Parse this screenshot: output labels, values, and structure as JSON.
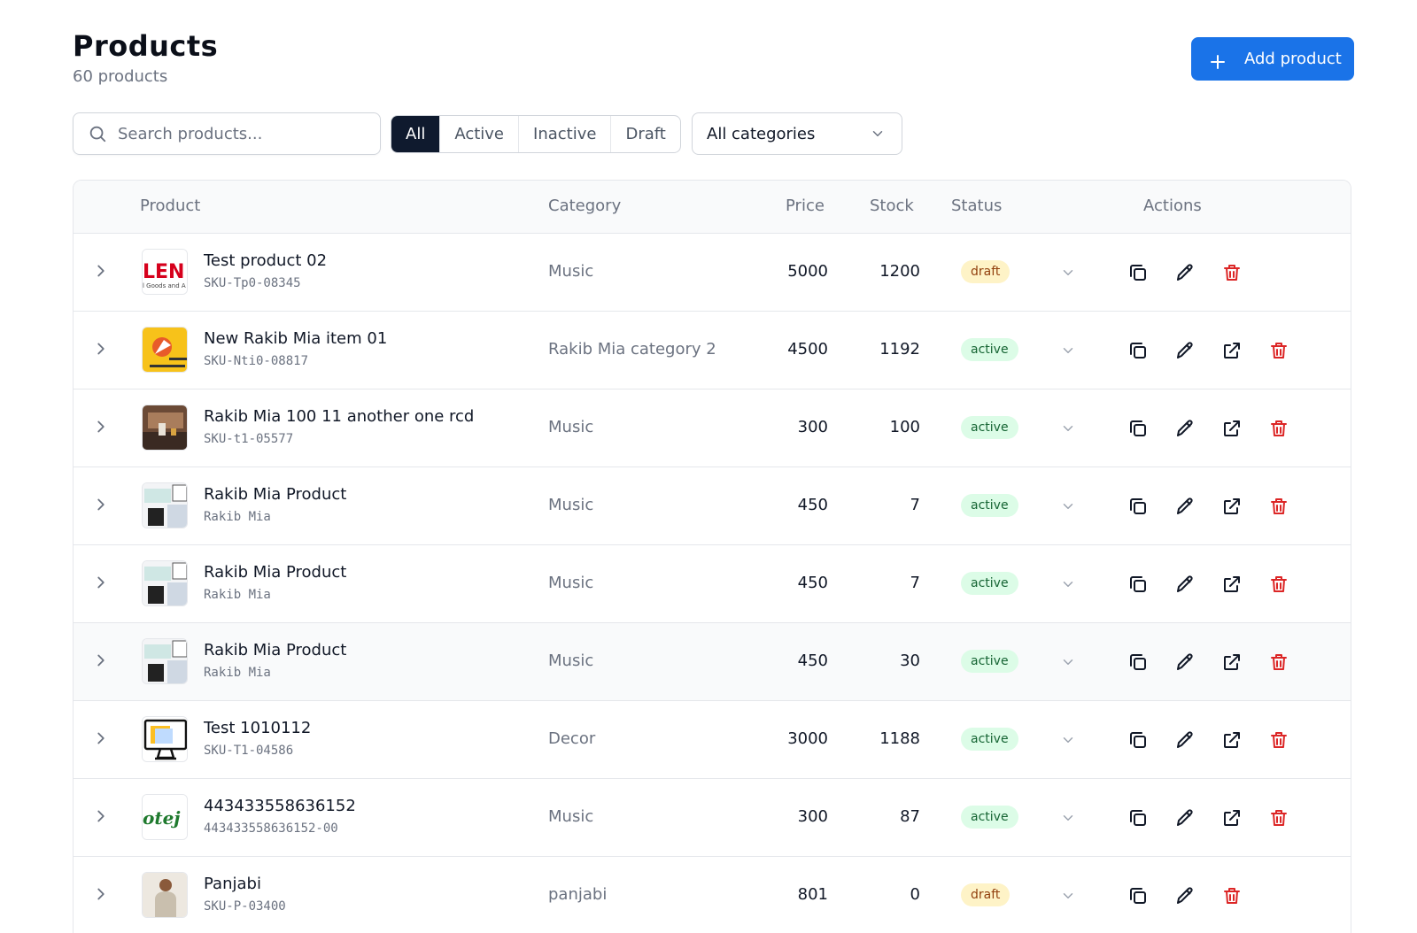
{
  "header": {
    "title": "Products",
    "count_text": "60 products"
  },
  "add_button": {
    "label": "Add product"
  },
  "search": {
    "placeholder": "Search products..."
  },
  "filters": {
    "tabs": [
      "All",
      "Active",
      "Inactive",
      "Draft"
    ],
    "selected": "All"
  },
  "category_select": {
    "value": "All categories"
  },
  "table": {
    "columns": {
      "product": "Product",
      "category": "Category",
      "price": "Price",
      "stock": "Stock",
      "status": "Status",
      "actions": "Actions"
    },
    "rows": [
      {
        "name": "Test product 02",
        "sku": "SKU-Tp0-08345",
        "category": "Music",
        "price": "5000",
        "stock": "1200",
        "status": "draft",
        "thumb": "logo-red",
        "has_external": false
      },
      {
        "name": "New Rakib Mia item 01",
        "sku": "SKU-Nti0-08817",
        "category": "Rakib Mia category 2",
        "price": "4500",
        "stock": "1192",
        "status": "active",
        "thumb": "rocket-yellow",
        "has_external": true
      },
      {
        "name": "Rakib Mia 100 11 another one rcd",
        "sku": "SKU-t1-05577",
        "category": "Music",
        "price": "300",
        "stock": "100",
        "status": "active",
        "thumb": "room-photo",
        "has_external": true
      },
      {
        "name": "Rakib Mia Product",
        "sku": "Rakib Mia",
        "category": "Music",
        "price": "450",
        "stock": "7",
        "status": "active",
        "thumb": "collage",
        "has_external": true
      },
      {
        "name": "Rakib Mia Product",
        "sku": "Rakib Mia",
        "category": "Music",
        "price": "450",
        "stock": "7",
        "status": "active",
        "thumb": "collage",
        "has_external": true
      },
      {
        "name": "Rakib Mia Product",
        "sku": "Rakib Mia",
        "category": "Music",
        "price": "450",
        "stock": "30",
        "status": "active",
        "thumb": "collage",
        "has_external": true,
        "highlighted": true
      },
      {
        "name": "Test 1010112",
        "sku": "SKU-T1-04586",
        "category": "Decor",
        "price": "3000",
        "stock": "1188",
        "status": "active",
        "thumb": "monitor",
        "has_external": true
      },
      {
        "name": "443433558636152",
        "sku": "443433558636152-00",
        "category": "Music",
        "price": "300",
        "stock": "87",
        "status": "active",
        "thumb": "script-green",
        "has_external": true
      },
      {
        "name": "Panjabi",
        "sku": "SKU-P-03400",
        "category": "panjabi",
        "price": "801",
        "stock": "0",
        "status": "draft",
        "thumb": "person",
        "has_external": false
      }
    ]
  },
  "colors": {
    "primary": "#1a73e8",
    "selected_tab": "#0f1a2e",
    "danger": "#dc2626",
    "draft_bg": "#fef3c7",
    "active_bg": "#dcfce7"
  },
  "thumb_text": {
    "logo_big": "LEN",
    "logo_small": "l Goods and A",
    "script": "otej i"
  }
}
